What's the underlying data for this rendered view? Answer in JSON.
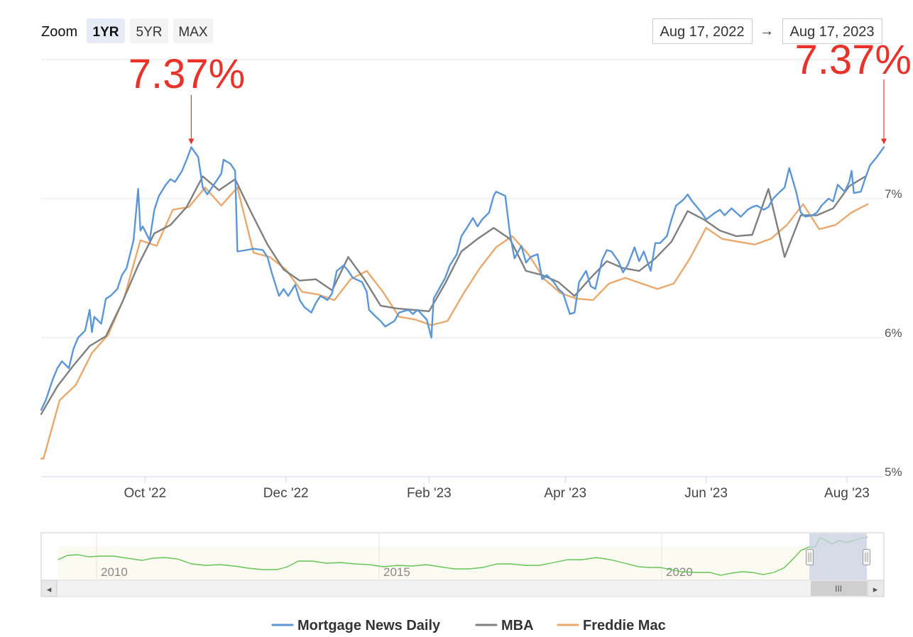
{
  "zoom": {
    "label": "Zoom",
    "buttons": [
      {
        "label": "1YR",
        "active": true
      },
      {
        "label": "5YR",
        "active": false
      },
      {
        "label": "MAX",
        "active": false
      }
    ]
  },
  "range": {
    "from": "Aug 17, 2022",
    "arrow": "→",
    "to": "Aug 17, 2023"
  },
  "callouts": [
    {
      "text": "7.37%",
      "series": "Mortgage News Daily",
      "date": "2022-10-21",
      "value": 7.37
    },
    {
      "text": "7.37%",
      "series": "Mortgage News Daily",
      "date": "2023-08-17",
      "value": 7.37
    }
  ],
  "navigator": {
    "tick_labels": [
      "2010",
      "2015",
      "2020"
    ],
    "scroll_grip": "III",
    "left_arrow": "◂",
    "right_arrow": "▸"
  },
  "colors": {
    "mnd": "#5b96d6",
    "mba": "#7f7f7f",
    "freddie": "#e9a86c",
    "callout": "#e8332a",
    "navigator_line": "#66c455"
  },
  "chart_data": {
    "type": "line",
    "title": "",
    "xlabel": "",
    "ylabel": "",
    "ylim": [
      5,
      8
    ],
    "yticks": [
      5,
      6,
      7
    ],
    "ytick_labels": [
      "5%",
      "6%",
      "7%"
    ],
    "xlim": [
      "2022-08-17",
      "2023-08-17"
    ],
    "xticks": [
      "2022-10-01",
      "2022-12-01",
      "2023-02-01",
      "2023-04-01",
      "2023-06-01",
      "2023-08-01"
    ],
    "xtick_labels": [
      "Oct '22",
      "Dec '22",
      "Feb '23",
      "Apr '23",
      "Jun '23",
      "Aug '23"
    ],
    "legend_position": "bottom",
    "series": [
      {
        "name": "Mortgage News Daily",
        "color": "#5b96d6",
        "points": [
          [
            "2022-08-17",
            5.48
          ],
          [
            "2022-08-19",
            5.55
          ],
          [
            "2022-08-22",
            5.7
          ],
          [
            "2022-08-24",
            5.78
          ],
          [
            "2022-08-26",
            5.83
          ],
          [
            "2022-08-29",
            5.78
          ],
          [
            "2022-08-31",
            5.92
          ],
          [
            "2022-09-02",
            6.0
          ],
          [
            "2022-09-05",
            6.05
          ],
          [
            "2022-09-07",
            6.2
          ],
          [
            "2022-09-08",
            6.04
          ],
          [
            "2022-09-09",
            6.15
          ],
          [
            "2022-09-12",
            6.1
          ],
          [
            "2022-09-14",
            6.28
          ],
          [
            "2022-09-16",
            6.3
          ],
          [
            "2022-09-19",
            6.35
          ],
          [
            "2022-09-21",
            6.45
          ],
          [
            "2022-09-23",
            6.5
          ],
          [
            "2022-09-26",
            6.7
          ],
          [
            "2022-09-28",
            7.07
          ],
          [
            "2022-09-29",
            6.77
          ],
          [
            "2022-09-30",
            6.8
          ],
          [
            "2022-10-03",
            6.7
          ],
          [
            "2022-10-05",
            6.92
          ],
          [
            "2022-10-07",
            7.02
          ],
          [
            "2022-10-10",
            7.1
          ],
          [
            "2022-10-12",
            7.14
          ],
          [
            "2022-10-14",
            7.12
          ],
          [
            "2022-10-17",
            7.2
          ],
          [
            "2022-10-19",
            7.28
          ],
          [
            "2022-10-21",
            7.37
          ],
          [
            "2022-10-24",
            7.3
          ],
          [
            "2022-10-26",
            7.08
          ],
          [
            "2022-10-28",
            7.03
          ],
          [
            "2022-11-01",
            7.13
          ],
          [
            "2022-11-03",
            7.18
          ],
          [
            "2022-11-04",
            7.28
          ],
          [
            "2022-11-07",
            7.25
          ],
          [
            "2022-11-09",
            7.2
          ],
          [
            "2022-11-10",
            6.62
          ],
          [
            "2022-11-14",
            6.63
          ],
          [
            "2022-11-17",
            6.64
          ],
          [
            "2022-11-21",
            6.63
          ],
          [
            "2022-11-23",
            6.58
          ],
          [
            "2022-11-25",
            6.46
          ],
          [
            "2022-11-28",
            6.3
          ],
          [
            "2022-11-30",
            6.35
          ],
          [
            "2022-12-02",
            6.3
          ],
          [
            "2022-12-05",
            6.38
          ],
          [
            "2022-12-07",
            6.27
          ],
          [
            "2022-12-09",
            6.22
          ],
          [
            "2022-12-12",
            6.18
          ],
          [
            "2022-12-14",
            6.25
          ],
          [
            "2022-12-16",
            6.3
          ],
          [
            "2022-12-19",
            6.27
          ],
          [
            "2022-12-21",
            6.32
          ],
          [
            "2022-12-23",
            6.48
          ],
          [
            "2022-12-26",
            6.52
          ],
          [
            "2022-12-28",
            6.48
          ],
          [
            "2022-12-30",
            6.43
          ],
          [
            "2023-01-03",
            6.4
          ],
          [
            "2023-01-05",
            6.33
          ],
          [
            "2023-01-06",
            6.2
          ],
          [
            "2023-01-09",
            6.15
          ],
          [
            "2023-01-11",
            6.12
          ],
          [
            "2023-01-13",
            6.08
          ],
          [
            "2023-01-17",
            6.12
          ],
          [
            "2023-01-19",
            6.18
          ],
          [
            "2023-01-23",
            6.2
          ],
          [
            "2023-01-25",
            6.17
          ],
          [
            "2023-01-27",
            6.2
          ],
          [
            "2023-01-31",
            6.13
          ],
          [
            "2023-02-02",
            6.0
          ],
          [
            "2023-02-03",
            6.28
          ],
          [
            "2023-02-06",
            6.37
          ],
          [
            "2023-02-08",
            6.43
          ],
          [
            "2023-02-10",
            6.52
          ],
          [
            "2023-02-13",
            6.6
          ],
          [
            "2023-02-15",
            6.73
          ],
          [
            "2023-02-17",
            6.78
          ],
          [
            "2023-02-20",
            6.86
          ],
          [
            "2023-02-22",
            6.8
          ],
          [
            "2023-02-24",
            6.85
          ],
          [
            "2023-02-27",
            6.9
          ],
          [
            "2023-03-01",
            7.02
          ],
          [
            "2023-03-02",
            7.05
          ],
          [
            "2023-03-06",
            7.02
          ],
          [
            "2023-03-08",
            6.75
          ],
          [
            "2023-03-10",
            6.57
          ],
          [
            "2023-03-13",
            6.66
          ],
          [
            "2023-03-15",
            6.54
          ],
          [
            "2023-03-17",
            6.58
          ],
          [
            "2023-03-20",
            6.6
          ],
          [
            "2023-03-22",
            6.42
          ],
          [
            "2023-03-24",
            6.45
          ],
          [
            "2023-03-27",
            6.4
          ],
          [
            "2023-03-29",
            6.35
          ],
          [
            "2023-03-31",
            6.32
          ],
          [
            "2023-04-03",
            6.17
          ],
          [
            "2023-04-05",
            6.18
          ],
          [
            "2023-04-07",
            6.4
          ],
          [
            "2023-04-10",
            6.48
          ],
          [
            "2023-04-12",
            6.37
          ],
          [
            "2023-04-14",
            6.35
          ],
          [
            "2023-04-17",
            6.56
          ],
          [
            "2023-04-19",
            6.63
          ],
          [
            "2023-04-21",
            6.62
          ],
          [
            "2023-04-24",
            6.55
          ],
          [
            "2023-04-26",
            6.47
          ],
          [
            "2023-04-28",
            6.52
          ],
          [
            "2023-05-01",
            6.65
          ],
          [
            "2023-05-03",
            6.55
          ],
          [
            "2023-05-05",
            6.62
          ],
          [
            "2023-05-08",
            6.48
          ],
          [
            "2023-05-10",
            6.68
          ],
          [
            "2023-05-12",
            6.68
          ],
          [
            "2023-05-15",
            6.73
          ],
          [
            "2023-05-17",
            6.85
          ],
          [
            "2023-05-19",
            6.95
          ],
          [
            "2023-05-22",
            6.99
          ],
          [
            "2023-05-24",
            7.03
          ],
          [
            "2023-05-26",
            6.98
          ],
          [
            "2023-05-30",
            6.9
          ],
          [
            "2023-06-01",
            6.85
          ],
          [
            "2023-06-05",
            6.9
          ],
          [
            "2023-06-07",
            6.92
          ],
          [
            "2023-06-09",
            6.88
          ],
          [
            "2023-06-12",
            6.93
          ],
          [
            "2023-06-14",
            6.9
          ],
          [
            "2023-06-16",
            6.87
          ],
          [
            "2023-06-19",
            6.92
          ],
          [
            "2023-06-21",
            6.94
          ],
          [
            "2023-06-23",
            6.95
          ],
          [
            "2023-06-26",
            6.92
          ],
          [
            "2023-06-28",
            6.94
          ],
          [
            "2023-06-30",
            7.0
          ],
          [
            "2023-07-03",
            7.05
          ],
          [
            "2023-07-05",
            7.08
          ],
          [
            "2023-07-07",
            7.22
          ],
          [
            "2023-07-10",
            7.05
          ],
          [
            "2023-07-12",
            6.9
          ],
          [
            "2023-07-14",
            6.87
          ],
          [
            "2023-07-17",
            6.88
          ],
          [
            "2023-07-19",
            6.9
          ],
          [
            "2023-07-21",
            6.95
          ],
          [
            "2023-07-24",
            7.0
          ],
          [
            "2023-07-26",
            6.98
          ],
          [
            "2023-07-28",
            7.1
          ],
          [
            "2023-07-31",
            7.05
          ],
          [
            "2023-08-02",
            7.12
          ],
          [
            "2023-08-03",
            7.2
          ],
          [
            "2023-08-04",
            7.04
          ],
          [
            "2023-08-07",
            7.05
          ],
          [
            "2023-08-09",
            7.15
          ],
          [
            "2023-08-11",
            7.24
          ],
          [
            "2023-08-14",
            7.3
          ],
          [
            "2023-08-17",
            7.37
          ]
        ]
      },
      {
        "name": "MBA",
        "color": "#7f7f7f",
        "points": [
          [
            "2022-08-17",
            5.45
          ],
          [
            "2022-08-24",
            5.65
          ],
          [
            "2022-08-31",
            5.8
          ],
          [
            "2022-09-07",
            5.94
          ],
          [
            "2022-09-14",
            6.01
          ],
          [
            "2022-09-21",
            6.25
          ],
          [
            "2022-09-28",
            6.52
          ],
          [
            "2022-10-05",
            6.75
          ],
          [
            "2022-10-12",
            6.81
          ],
          [
            "2022-10-19",
            6.94
          ],
          [
            "2022-10-26",
            7.16
          ],
          [
            "2022-11-02",
            7.06
          ],
          [
            "2022-11-09",
            7.14
          ],
          [
            "2022-11-16",
            6.9
          ],
          [
            "2022-11-23",
            6.67
          ],
          [
            "2022-11-30",
            6.49
          ],
          [
            "2022-12-07",
            6.41
          ],
          [
            "2022-12-14",
            6.42
          ],
          [
            "2022-12-21",
            6.34
          ],
          [
            "2022-12-28",
            6.58
          ],
          [
            "2023-01-04",
            6.42
          ],
          [
            "2023-01-11",
            6.23
          ],
          [
            "2023-01-18",
            6.21
          ],
          [
            "2023-01-25",
            6.2
          ],
          [
            "2023-02-01",
            6.19
          ],
          [
            "2023-02-08",
            6.39
          ],
          [
            "2023-02-15",
            6.62
          ],
          [
            "2023-02-22",
            6.71
          ],
          [
            "2023-03-01",
            6.79
          ],
          [
            "2023-03-08",
            6.71
          ],
          [
            "2023-03-15",
            6.48
          ],
          [
            "2023-03-22",
            6.45
          ],
          [
            "2023-03-29",
            6.4
          ],
          [
            "2023-04-05",
            6.3
          ],
          [
            "2023-04-12",
            6.43
          ],
          [
            "2023-04-19",
            6.55
          ],
          [
            "2023-04-26",
            6.5
          ],
          [
            "2023-05-03",
            6.48
          ],
          [
            "2023-05-10",
            6.57
          ],
          [
            "2023-05-17",
            6.69
          ],
          [
            "2023-05-24",
            6.91
          ],
          [
            "2023-05-31",
            6.85
          ],
          [
            "2023-06-07",
            6.77
          ],
          [
            "2023-06-14",
            6.73
          ],
          [
            "2023-06-21",
            6.74
          ],
          [
            "2023-06-28",
            7.07
          ],
          [
            "2023-07-05",
            6.58
          ],
          [
            "2023-07-12",
            6.88
          ],
          [
            "2023-07-19",
            6.88
          ],
          [
            "2023-07-26",
            6.93
          ],
          [
            "2023-08-02",
            7.09
          ],
          [
            "2023-08-09",
            7.16
          ]
        ]
      },
      {
        "name": "Freddie Mac",
        "color": "#e9a86c",
        "points": [
          [
            "2022-08-17",
            5.13
          ],
          [
            "2022-08-18",
            5.13
          ],
          [
            "2022-08-25",
            5.55
          ],
          [
            "2022-09-01",
            5.66
          ],
          [
            "2022-09-08",
            5.89
          ],
          [
            "2022-09-15",
            6.02
          ],
          [
            "2022-09-22",
            6.29
          ],
          [
            "2022-09-29",
            6.7
          ],
          [
            "2022-10-06",
            6.66
          ],
          [
            "2022-10-13",
            6.92
          ],
          [
            "2022-10-20",
            6.94
          ],
          [
            "2022-10-27",
            7.08
          ],
          [
            "2022-11-03",
            6.95
          ],
          [
            "2022-11-10",
            7.08
          ],
          [
            "2022-11-17",
            6.61
          ],
          [
            "2022-11-24",
            6.58
          ],
          [
            "2022-12-01",
            6.49
          ],
          [
            "2022-12-08",
            6.33
          ],
          [
            "2022-12-15",
            6.31
          ],
          [
            "2022-12-22",
            6.27
          ],
          [
            "2022-12-29",
            6.42
          ],
          [
            "2023-01-05",
            6.48
          ],
          [
            "2023-01-12",
            6.33
          ],
          [
            "2023-01-19",
            6.15
          ],
          [
            "2023-01-26",
            6.13
          ],
          [
            "2023-02-02",
            6.09
          ],
          [
            "2023-02-09",
            6.12
          ],
          [
            "2023-02-16",
            6.32
          ],
          [
            "2023-02-23",
            6.5
          ],
          [
            "2023-03-02",
            6.65
          ],
          [
            "2023-03-09",
            6.73
          ],
          [
            "2023-03-16",
            6.6
          ],
          [
            "2023-03-23",
            6.42
          ],
          [
            "2023-03-30",
            6.32
          ],
          [
            "2023-04-06",
            6.28
          ],
          [
            "2023-04-13",
            6.27
          ],
          [
            "2023-04-20",
            6.39
          ],
          [
            "2023-04-27",
            6.43
          ],
          [
            "2023-05-04",
            6.39
          ],
          [
            "2023-05-11",
            6.35
          ],
          [
            "2023-05-18",
            6.39
          ],
          [
            "2023-05-25",
            6.57
          ],
          [
            "2023-06-01",
            6.79
          ],
          [
            "2023-06-08",
            6.71
          ],
          [
            "2023-06-15",
            6.69
          ],
          [
            "2023-06-22",
            6.67
          ],
          [
            "2023-06-29",
            6.71
          ],
          [
            "2023-07-06",
            6.81
          ],
          [
            "2023-07-13",
            6.96
          ],
          [
            "2023-07-20",
            6.78
          ],
          [
            "2023-07-27",
            6.81
          ],
          [
            "2023-08-03",
            6.9
          ],
          [
            "2023-08-10",
            6.96
          ]
        ]
      }
    ]
  }
}
